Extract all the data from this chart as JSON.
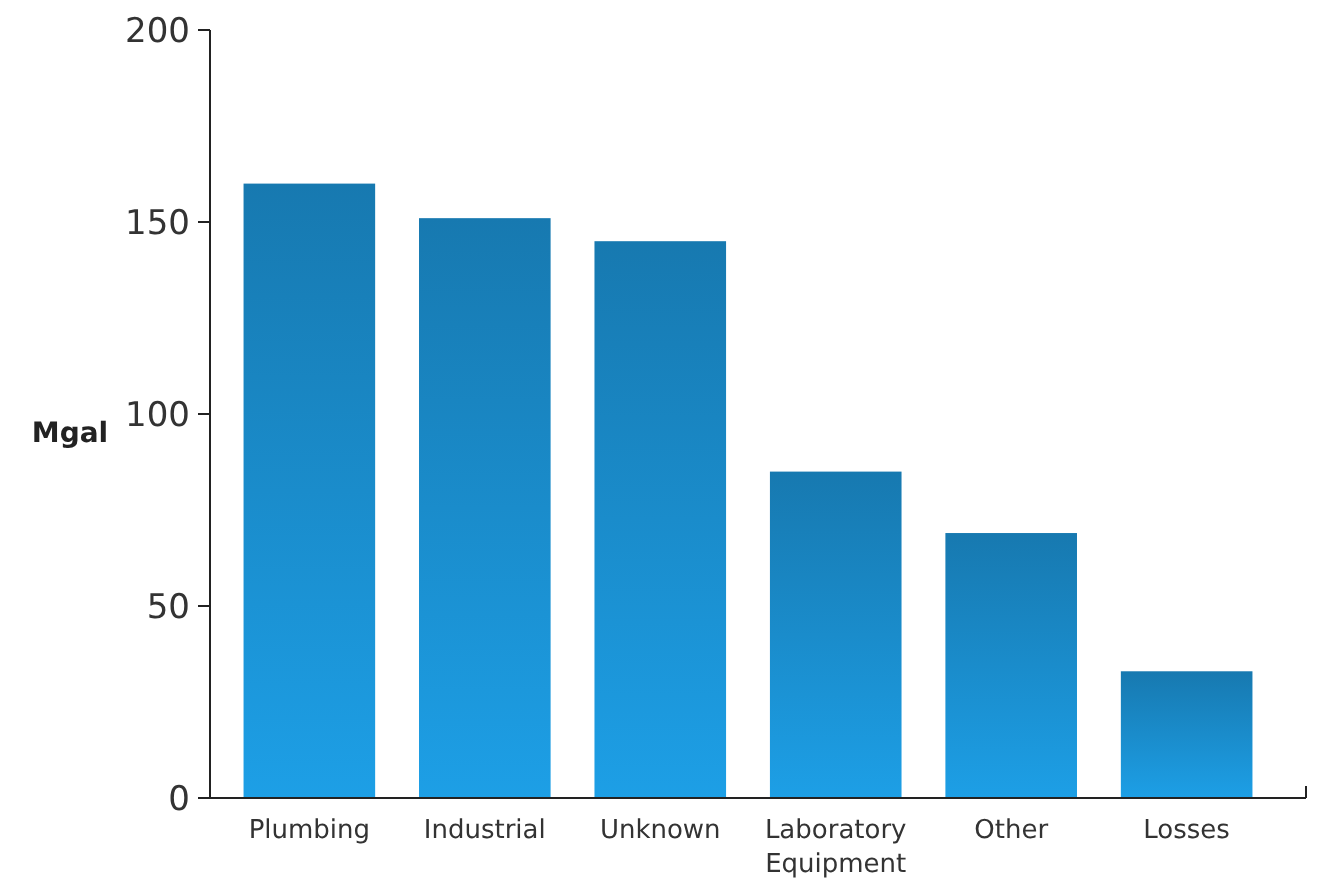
{
  "chart_data": {
    "type": "bar",
    "ylabel": "Mgal",
    "categories": [
      "Plumbing",
      "Industrial",
      "Unknown",
      "Laboratory Equipment",
      "Other",
      "Losses"
    ],
    "values": [
      160,
      151,
      145,
      85,
      69,
      33
    ],
    "color": "#1a8ccb",
    "ylim": [
      0,
      200
    ],
    "yticks": [
      0,
      50,
      100,
      150,
      200
    ],
    "grid": false
  }
}
